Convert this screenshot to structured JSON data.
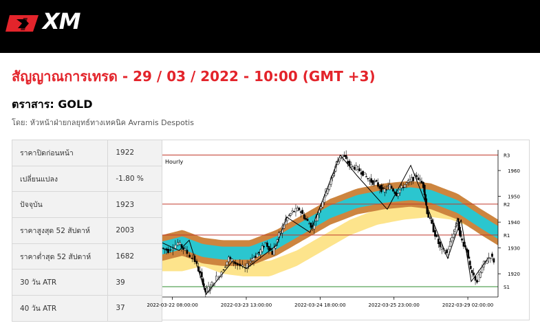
{
  "brand": {
    "logo_text": "XM",
    "logo_color": "#e3242b"
  },
  "page": {
    "title": "สัญญาณการเทรด - 29 / 03 / 2022 - 10:00 (GMT +3)",
    "instrument": "ตราสาร: GOLD",
    "byline": "โดย: หัวหน้าฝ่ายกลยุทธ์ทางเทคนิค Avramis Despotis"
  },
  "info_table": [
    {
      "label": "ราคาปิดก่อนหน้า",
      "value": "1922"
    },
    {
      "label": "เปลี่ยนแปลง",
      "value": "-1.80 %"
    },
    {
      "label": "ปัจจุบัน",
      "value": "1923"
    },
    {
      "label": "ราคาสูงสุด 52 สัปดาห์",
      "value": "2003"
    },
    {
      "label": "ราคาต่ำสุด 52 สัปดาห์",
      "value": "1682"
    },
    {
      "label": "30 วัน ATR",
      "value": "39"
    },
    {
      "label": "40 วัน ATR",
      "value": "37"
    }
  ],
  "chart_data": {
    "type": "candlestick",
    "title": "Hourly",
    "ylim": [
      1911,
      1968
    ],
    "y_ticks": [
      1920,
      1930,
      1940,
      1950,
      1960
    ],
    "x_tick_labels": [
      "2022-03-22 08:00:00",
      "2022-03-23 13:00:00",
      "2022-03-24 18:00:00",
      "2022-03-25 23:00:00",
      "2022-03-29 02:00:00"
    ],
    "levels": [
      {
        "name": "R3",
        "value": 1966,
        "color": "#c0392b"
      },
      {
        "name": "R2",
        "value": 1947,
        "color": "#c0392b"
      },
      {
        "name": "R1",
        "value": 1935,
        "color": "#c0392b"
      },
      {
        "name": "S1",
        "value": 1915,
        "color": "#2e8b2e"
      }
    ],
    "colors": {
      "band_outer": "#cd853f",
      "band_inner": "#2bc6cf",
      "band_yellow": "#fde48c"
    }
  }
}
